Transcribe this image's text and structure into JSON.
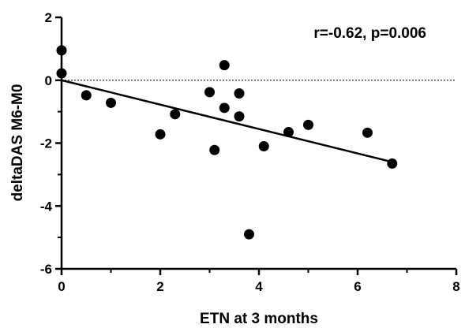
{
  "chart_data": {
    "type": "scatter",
    "xlabel": "ETN at 3 months",
    "ylabel": "deltaDAS M6-M0",
    "annotation": "r=-0.62, p=0.006",
    "xlim": [
      0,
      8
    ],
    "ylim": [
      -6,
      2
    ],
    "x_ticks": [
      0,
      2,
      4,
      6,
      8
    ],
    "y_ticks": [
      -6,
      -4,
      -2,
      0,
      2
    ],
    "reference_line_y": 0,
    "regression_line": {
      "x": [
        0,
        6.7
      ],
      "y": [
        0,
        -2.6
      ]
    },
    "points": [
      {
        "x": 0,
        "y": 0.95
      },
      {
        "x": 0,
        "y": 0.22
      },
      {
        "x": 0.5,
        "y": -0.48
      },
      {
        "x": 1.0,
        "y": -0.72
      },
      {
        "x": 2.0,
        "y": -1.72
      },
      {
        "x": 2.3,
        "y": -1.08
      },
      {
        "x": 3.0,
        "y": -0.38
      },
      {
        "x": 3.1,
        "y": -2.22
      },
      {
        "x": 3.3,
        "y": 0.48
      },
      {
        "x": 3.3,
        "y": -0.88
      },
      {
        "x": 3.6,
        "y": -0.42
      },
      {
        "x": 3.6,
        "y": -1.15
      },
      {
        "x": 3.8,
        "y": -4.9
      },
      {
        "x": 4.1,
        "y": -2.1
      },
      {
        "x": 4.6,
        "y": -1.65
      },
      {
        "x": 5.0,
        "y": -1.42
      },
      {
        "x": 6.2,
        "y": -1.67
      },
      {
        "x": 6.7,
        "y": -2.65
      }
    ],
    "grid": false,
    "point_color": "#000000"
  }
}
